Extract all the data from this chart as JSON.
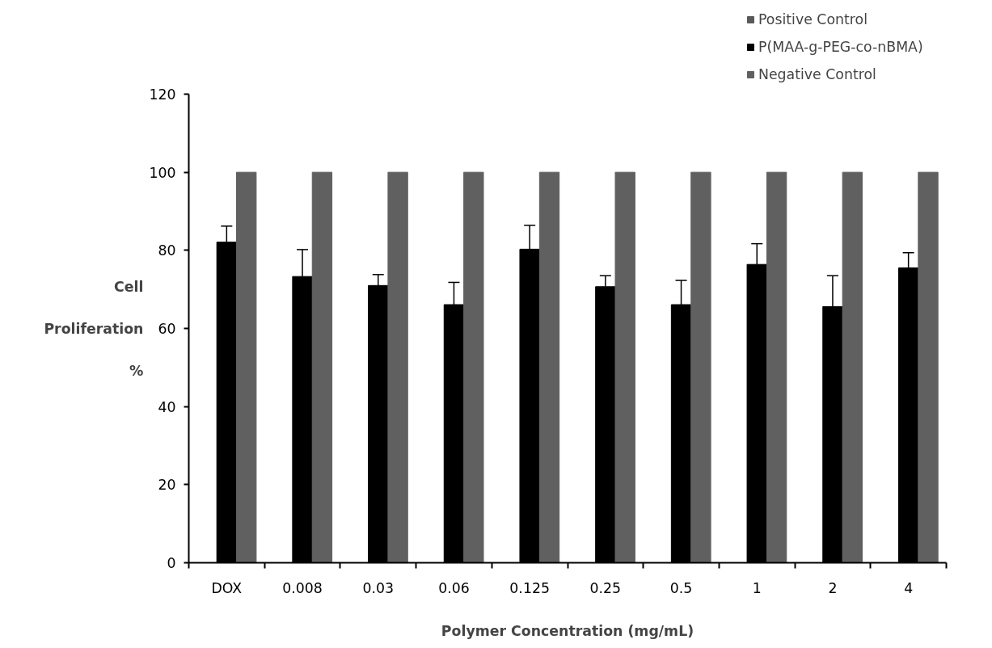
{
  "chart_data": {
    "type": "bar",
    "xlabel": "Polymer Concentration (mg/mL)",
    "ylabel": "Cell Proliferation %",
    "categories": [
      "DOX",
      "0.008",
      "0.03",
      "0.06",
      "0.125",
      "0.25",
      "0.5",
      "1",
      "2",
      "4"
    ],
    "series": [
      {
        "name": "Positive Control",
        "color": "#595959",
        "values": [
          null,
          null,
          null,
          null,
          null,
          null,
          null,
          null,
          null,
          null
        ]
      },
      {
        "name": "P(MAA-g-PEG-co-nBMA)",
        "color": "#000000",
        "values": [
          82.1,
          73.3,
          71.0,
          66.1,
          80.3,
          70.7,
          66.1,
          76.4,
          65.6,
          75.5
        ],
        "errors": [
          [
            82.1,
            86.2
          ],
          [
            73.3,
            80.2
          ],
          [
            71.0,
            73.8
          ],
          [
            66.1,
            71.8
          ],
          [
            80.3,
            86.4
          ],
          [
            70.7,
            73.5
          ],
          [
            66.1,
            72.3
          ],
          [
            76.4,
            81.7
          ],
          [
            65.6,
            73.5
          ],
          [
            75.5,
            79.4
          ]
        ]
      },
      {
        "name": "Negative Control",
        "color": "#606060",
        "values": [
          100,
          100,
          100,
          100,
          100,
          100,
          100,
          100,
          100,
          100
        ]
      }
    ],
    "ylim": [
      0,
      120
    ],
    "yticks": [
      0,
      20,
      40,
      60,
      80,
      100,
      120
    ],
    "grid": false,
    "legend": "top right"
  }
}
